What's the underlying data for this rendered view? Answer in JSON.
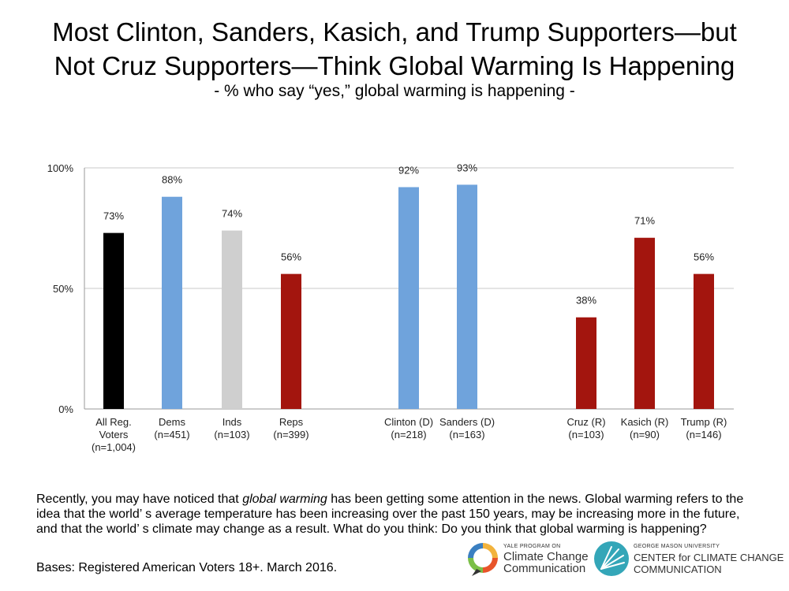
{
  "header": {
    "title_line1": "Most Clinton, Sanders, Kasich, and Trump Supporters—but",
    "title_line2": "Not Cruz Supporters—Think Global Warming Is Happening",
    "subtitle": "- % who say “yes,” global warming is happening -"
  },
  "chart_data": {
    "type": "bar",
    "ylim": [
      0,
      100
    ],
    "yticks": [
      "0%",
      "50%",
      "100%"
    ],
    "grid": true,
    "bars": [
      {
        "label1": "All Reg.",
        "label2": "Voters",
        "label3": "(n=1,004)",
        "value": 73,
        "value_label": "73%",
        "color": "#000000"
      },
      {
        "label1": "Dems",
        "label2": "(n=451)",
        "label3": "",
        "value": 88,
        "value_label": "88%",
        "color": "#6fa3dc"
      },
      {
        "label1": "Inds",
        "label2": "(n=103)",
        "label3": "",
        "value": 74,
        "value_label": "74%",
        "color": "#cfcfcf"
      },
      {
        "label1": "Reps",
        "label2": "(n=399)",
        "label3": "",
        "value": 56,
        "value_label": "56%",
        "color": "#a3150e"
      },
      {
        "label1": "Clinton (D)",
        "label2": "(n=218)",
        "label3": "",
        "value": 92,
        "value_label": "92%",
        "color": "#6fa3dc"
      },
      {
        "label1": "Sanders (D)",
        "label2": "(n=163)",
        "label3": "",
        "value": 93,
        "value_label": "93%",
        "color": "#6fa3dc"
      },
      {
        "label1": "Cruz (R)",
        "label2": "(n=103)",
        "label3": "",
        "value": 38,
        "value_label": "38%",
        "color": "#a3150e"
      },
      {
        "label1": "Kasich (R)",
        "label2": "(n=90)",
        "label3": "",
        "value": 71,
        "value_label": "71%",
        "color": "#a3150e"
      },
      {
        "label1": "Trump (R)",
        "label2": "(n=146)",
        "label3": "",
        "value": 56,
        "value_label": "56%",
        "color": "#a3150e"
      }
    ]
  },
  "footer": {
    "question_pre": "Recently, you may have noticed that ",
    "question_em": "global warming",
    "question_post": " has been getting some attention in the news. Global warming refers to the idea that the world’ s average temperature has been increasing over the past 150 years, may be increasing more in the future, and that the world’ s climate may change as a result. What do you think: Do you think that global warming is happening?",
    "bases": "Bases: Registered American Voters 18+. March 2016."
  },
  "logos": {
    "yale_small": "YALE PROGRAM ON",
    "yale_line1": "Climate Change",
    "yale_line2": "Communication",
    "gmu_small": "GEORGE MASON UNIVERSITY",
    "gmu_line1": "CENTER for CLIMATE CHANGE",
    "gmu_line2": "COMMUNICATION",
    "yale_colors": [
      "#f2b33d",
      "#e8542a",
      "#7bbf47",
      "#3a7fc1"
    ],
    "gmu_color": "#34a6b8"
  }
}
